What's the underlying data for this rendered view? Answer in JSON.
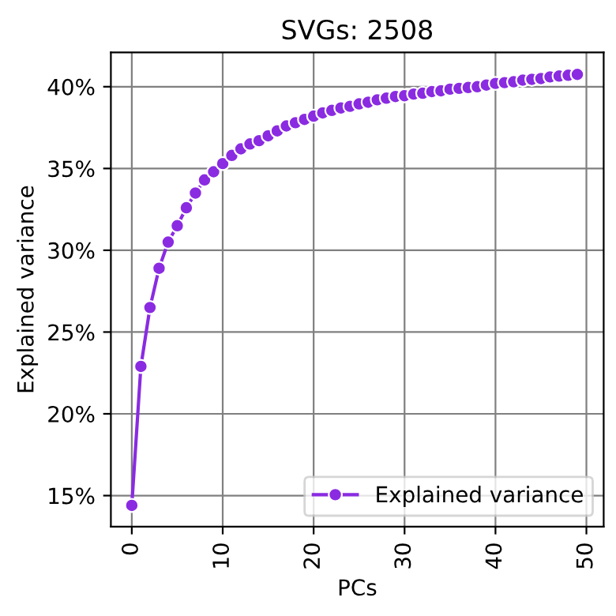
{
  "chart_data": {
    "type": "line",
    "title": "SVGs: 2508",
    "xlabel": "PCs",
    "ylabel": "Explained variance",
    "x": [
      0,
      1,
      2,
      3,
      4,
      5,
      6,
      7,
      8,
      9,
      10,
      11,
      12,
      13,
      14,
      15,
      16,
      17,
      18,
      19,
      20,
      21,
      22,
      23,
      24,
      25,
      26,
      27,
      28,
      29,
      30,
      31,
      32,
      33,
      34,
      35,
      36,
      37,
      38,
      39,
      40,
      41,
      42,
      43,
      44,
      45,
      46,
      47,
      48,
      49
    ],
    "series": [
      {
        "name": "Explained variance",
        "color": "#8a2be2",
        "values": [
          14.4,
          22.9,
          26.5,
          28.9,
          30.5,
          31.5,
          32.6,
          33.5,
          34.3,
          34.8,
          35.3,
          35.8,
          36.2,
          36.5,
          36.7,
          37.0,
          37.3,
          37.6,
          37.8,
          38.0,
          38.2,
          38.4,
          38.55,
          38.7,
          38.8,
          38.95,
          39.05,
          39.2,
          39.3,
          39.4,
          39.45,
          39.55,
          39.6,
          39.7,
          39.75,
          39.85,
          39.9,
          39.95,
          40.0,
          40.1,
          40.2,
          40.25,
          40.3,
          40.4,
          40.45,
          40.5,
          40.6,
          40.65,
          40.7,
          40.75
        ]
      }
    ],
    "xlim": [
      -2.3,
      51.9
    ],
    "ylim": [
      13.1,
      42.1
    ],
    "xticks": [
      0,
      10,
      20,
      30,
      40,
      50
    ],
    "yticks": [
      {
        "value": 15,
        "label": "15%"
      },
      {
        "value": 20,
        "label": "20%"
      },
      {
        "value": 25,
        "label": "25%"
      },
      {
        "value": 30,
        "label": "30%"
      },
      {
        "value": 35,
        "label": "35%"
      },
      {
        "value": 40,
        "label": "40%"
      }
    ],
    "grid": true,
    "legend": "lower right",
    "marker": "circle",
    "line_style": "solid"
  }
}
